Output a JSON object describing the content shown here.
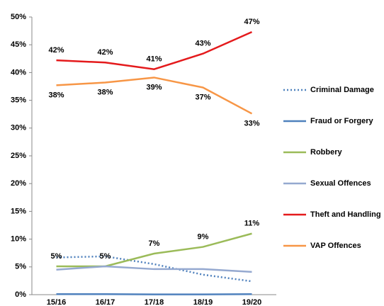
{
  "chart_data": {
    "type": "line",
    "categories": [
      "15/16",
      "16/17",
      "17/18",
      "18/19",
      "19/20"
    ],
    "series": [
      {
        "name": "Criminal Damage",
        "color": "#4f81bd",
        "style": "dotted",
        "values": [
          6.7,
          6.9,
          5.5,
          3.6,
          2.4
        ]
      },
      {
        "name": "Fraud or Forgery",
        "color": "#4f81bd",
        "style": "solid",
        "values": [
          0.1,
          0.1,
          0.05,
          0.05,
          0.1
        ]
      },
      {
        "name": "Robbery",
        "color": "#9bbb59",
        "style": "solid",
        "values": [
          5.1,
          5.1,
          7.4,
          8.6,
          11.0
        ],
        "value_labels": [
          "5%",
          "5%",
          "7%",
          "9%",
          "11%"
        ],
        "label_side": "above"
      },
      {
        "name": "Sexual Offences",
        "color": "#95a9d0",
        "style": "solid",
        "values": [
          4.5,
          5.1,
          4.6,
          4.6,
          4.1
        ]
      },
      {
        "name": "Theft and Handling",
        "color": "#e41a1c",
        "style": "solid",
        "values": [
          42.2,
          41.8,
          40.6,
          43.4,
          47.3
        ],
        "value_labels": [
          "42%",
          "42%",
          "41%",
          "43%",
          "47%"
        ],
        "label_side": "above"
      },
      {
        "name": "VAP Offences",
        "color": "#f79646",
        "style": "solid",
        "values": [
          37.7,
          38.2,
          39.1,
          37.3,
          32.6
        ],
        "value_labels": [
          "38%",
          "38%",
          "39%",
          "37%",
          "33%"
        ],
        "label_side": "below"
      }
    ],
    "ylim": [
      0,
      50
    ],
    "yticks": [
      {
        "value": 0,
        "label": "0%"
      },
      {
        "value": 5,
        "label": "5%"
      },
      {
        "value": 10,
        "label": "10%"
      },
      {
        "value": 15,
        "label": "15%"
      },
      {
        "value": 20,
        "label": "20%"
      },
      {
        "value": 25,
        "label": "25%"
      },
      {
        "value": 30,
        "label": "30%"
      },
      {
        "value": 35,
        "label": "35%"
      },
      {
        "value": 40,
        "label": "40%"
      },
      {
        "value": 45,
        "label": "45%"
      },
      {
        "value": 50,
        "label": "50%"
      }
    ],
    "grid": false,
    "legend": "right"
  }
}
